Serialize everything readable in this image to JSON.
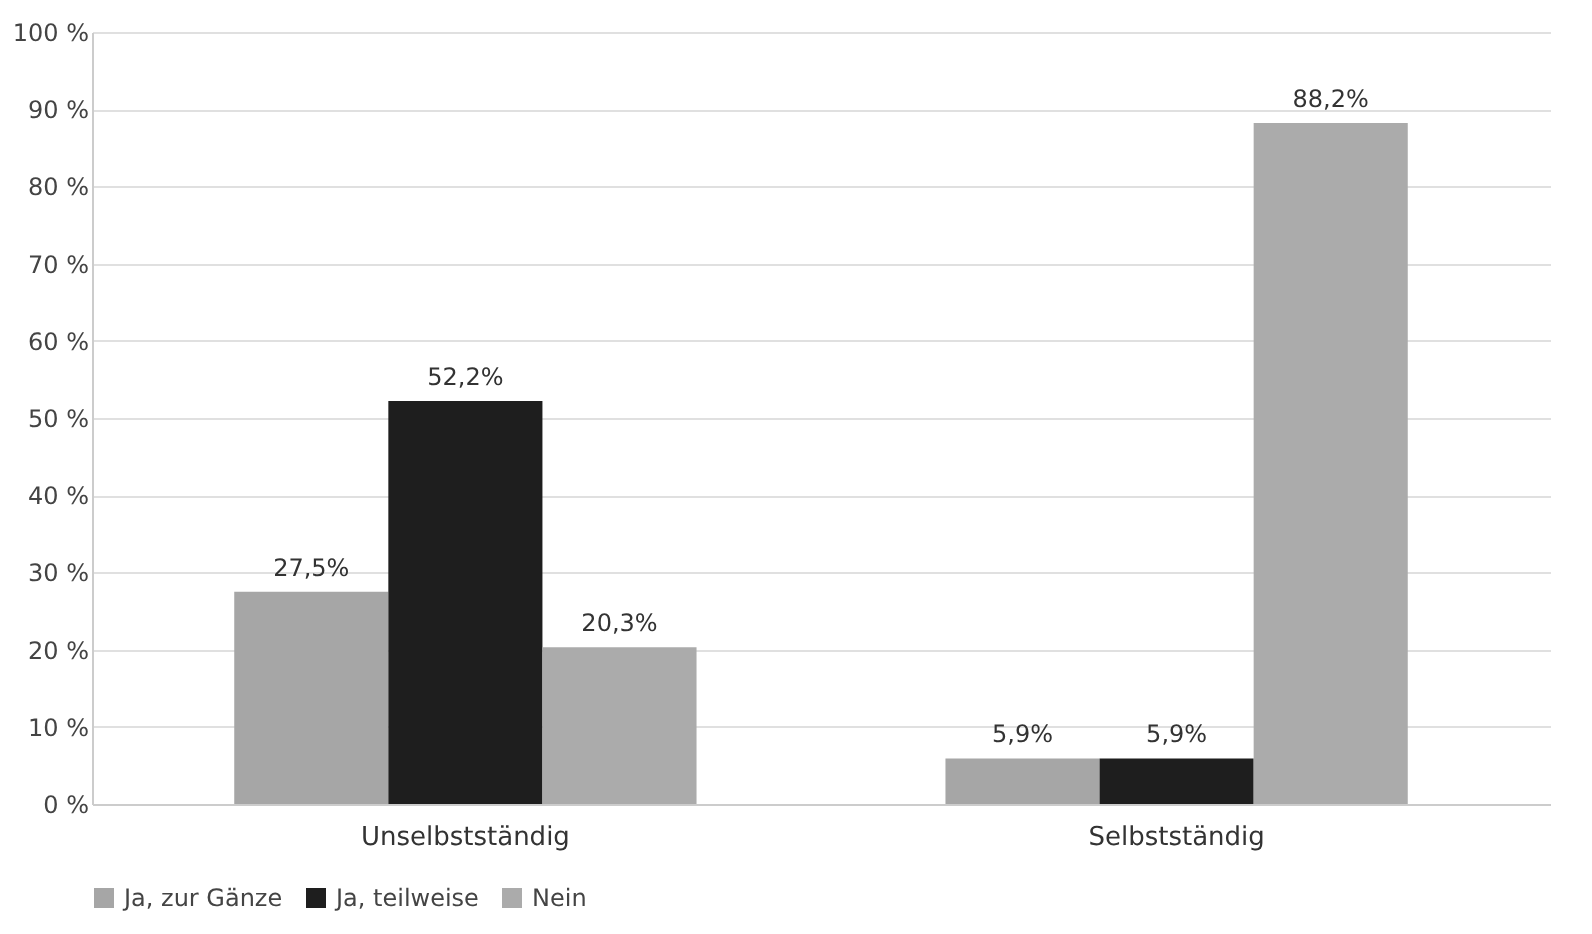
{
  "chart_data": {
    "type": "bar",
    "categories": [
      "Unselbstständig",
      "Selbstständig"
    ],
    "series": [
      {
        "name": "Ja, zur Gänze",
        "color": "#a6a6a6",
        "values": [
          27.5,
          5.9
        ],
        "value_labels": [
          "27,5%",
          "5,9%"
        ]
      },
      {
        "name": "Ja, teilweise",
        "color": "#1e1e1e",
        "values": [
          52.2,
          5.9
        ],
        "value_labels": [
          "52,2%",
          "5,9%"
        ]
      },
      {
        "name": "Nein",
        "color": "#ababab",
        "values": [
          20.3,
          88.2
        ],
        "value_labels": [
          "20,3%",
          "88,2%"
        ]
      }
    ],
    "ylim": [
      0,
      100
    ],
    "yticks": [
      {
        "value": 0,
        "label": "0 %"
      },
      {
        "value": 10,
        "label": "10 %"
      },
      {
        "value": 20,
        "label": "20 %"
      },
      {
        "value": 30,
        "label": "30 %"
      },
      {
        "value": 40,
        "label": "40 %"
      },
      {
        "value": 50,
        "label": "50 %"
      },
      {
        "value": 60,
        "label": "60 %"
      },
      {
        "value": 70,
        "label": "70 %"
      },
      {
        "value": 80,
        "label": "80 %"
      },
      {
        "value": 90,
        "label": "90 %"
      },
      {
        "value": 100,
        "label": "100 %"
      }
    ],
    "grid": "y",
    "legend": "bottom"
  }
}
